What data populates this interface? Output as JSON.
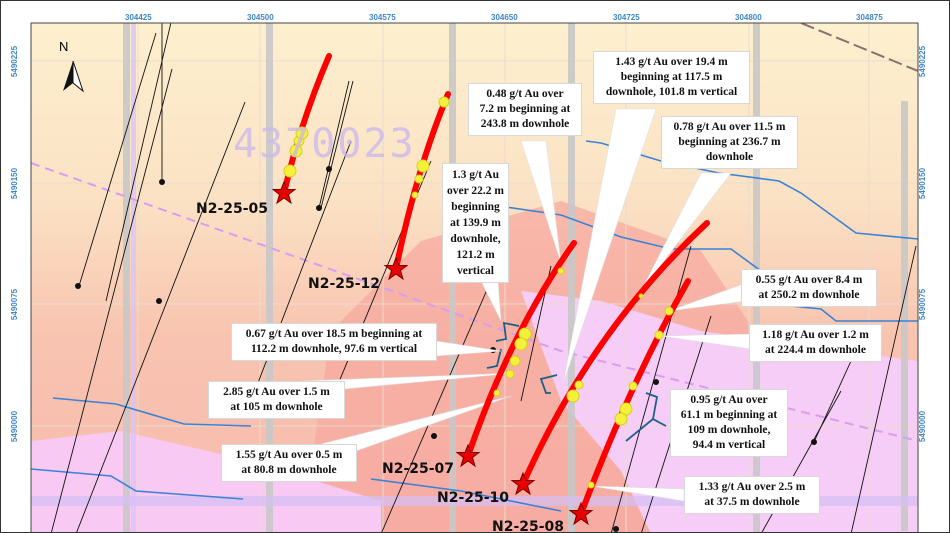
{
  "map": {
    "easting_ticks": [
      "304425",
      "304500",
      "304575",
      "304650",
      "304725",
      "304800",
      "304875"
    ],
    "northing_ticks": [
      "5490225",
      "5490150",
      "5490075",
      "5490000"
    ],
    "north_label": "N",
    "claim_label": "4370023",
    "colors": {
      "drill_trace": "#ff0000",
      "intercept": "#f5f03a",
      "coord_text": "#3f86c9",
      "contour": "#3b82d6",
      "high_zone": "#f7a8a0",
      "low_zone": "#f6ccf5"
    }
  },
  "drill_holes": [
    {
      "id": "N2-25-05"
    },
    {
      "id": "N2-25-12"
    },
    {
      "id": "N2-25-07"
    },
    {
      "id": "N2-25-10"
    },
    {
      "id": "N2-25-08"
    }
  ],
  "callouts": [
    {
      "lines": [
        "0.48 g/t Au over",
        "7.2 m beginning at",
        "243.8 m downhole"
      ]
    },
    {
      "lines": [
        "1.43 g/t Au over 19.4 m",
        "beginning at 117.5 m",
        "downhole, 101.8 m vertical"
      ]
    },
    {
      "lines": [
        "0.78 g/t Au over 11.5 m",
        "beginning at 236.7 m",
        "downhole"
      ]
    },
    {
      "lines": [
        "1.3 g/t Au",
        "over 22.2 m",
        "beginning",
        "at 139.9 m",
        "downhole,",
        "121.2 m",
        "vertical"
      ]
    },
    {
      "lines": [
        "0.55 g/t Au over 8.4 m",
        "at 250.2 m downhole"
      ]
    },
    {
      "lines": [
        "1.18 g/t Au over 1.2 m",
        "at 224.4 m downhole"
      ]
    },
    {
      "lines": [
        "0.67 g/t Au over 18.5 m beginning at",
        "112.2 m downhole, 97.6 m vertical"
      ]
    },
    {
      "lines": [
        "2.85 g/t Au over 1.5 m",
        "at 105 m downhole"
      ]
    },
    {
      "lines": [
        "1.55 g/t Au over 0.5 m",
        "at 80.8 m downhole"
      ]
    },
    {
      "lines": [
        "0.95 g/t Au over",
        "61.1 m beginning at",
        "109 m downhole,",
        "94.4 m vertical"
      ]
    },
    {
      "lines": [
        "1.33 g/t Au over 2.5 m",
        "at 37.5 m downhole"
      ]
    }
  ]
}
